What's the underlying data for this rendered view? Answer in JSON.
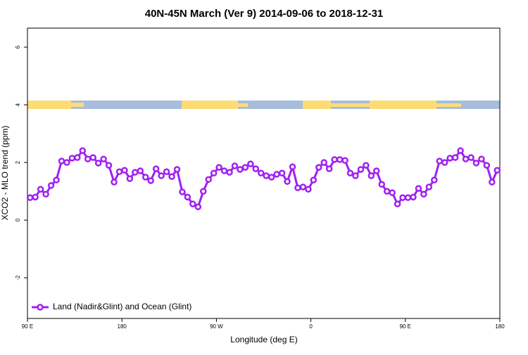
{
  "chart_data": {
    "type": "line",
    "title": "40N-45N March (Ver 9)   2014-09-06 to 2018-12-31",
    "xlabel": "Longitude (deg E)",
    "ylabel": "XCO2 - MLO trend (ppm)",
    "xlim": [
      90,
      540
    ],
    "ylim": [
      -3.41,
      6.66
    ],
    "xticks": [
      {
        "value": 90,
        "label": "90 E"
      },
      180,
      {
        "value": 270,
        "label": "90 W"
      },
      {
        "value": 360,
        "label": "0"
      },
      {
        "value": 450,
        "label": "90 E"
      },
      {
        "value": 540,
        "label": "180"
      }
    ],
    "yticks": [
      -2,
      0,
      2,
      4,
      6
    ],
    "legend": "bottom-left",
    "x": [
      92.5,
      97.5,
      102.5,
      107.5,
      112.5,
      117.5,
      122.5,
      127.5,
      132.5,
      137.5,
      142.5,
      147.5,
      152.5,
      157.5,
      162.5,
      167.5,
      172.5,
      177.5,
      182.5,
      187.5,
      192.5,
      197.5,
      202.5,
      207.5,
      212.5,
      217.5,
      222.5,
      227.5,
      232.5,
      237.5,
      242.5,
      247.5,
      252.5,
      257.5,
      262.5,
      267.5,
      272.5,
      277.5,
      282.5,
      287.5,
      292.5,
      297.5,
      302.5,
      307.5,
      312.5,
      317.5,
      322.5,
      327.5,
      332.5,
      337.5,
      342.5,
      347.5,
      352.5,
      357.5,
      362.5,
      367.5,
      372.5,
      377.5,
      382.5,
      387.5,
      392.5,
      397.5,
      402.5,
      407.5,
      412.5,
      417.5,
      422.5,
      427.5,
      432.5,
      437.5,
      442.5,
      447.5,
      452.5,
      457.5,
      462.5,
      467.5,
      472.5,
      477.5,
      482.5,
      487.5,
      492.5,
      497.5,
      502.5,
      507.5,
      512.5,
      517.5,
      522.5,
      527.5,
      532.5,
      537.5
    ],
    "series": [
      {
        "name": "Land (Nadir&Glint) and Ocean (Glint)",
        "color": "#a020f0",
        "values": [
          0.78,
          0.8,
          1.07,
          0.9,
          1.2,
          1.39,
          2.05,
          2.0,
          2.15,
          2.17,
          2.41,
          2.12,
          2.17,
          1.98,
          2.12,
          1.9,
          1.32,
          1.68,
          1.73,
          1.44,
          1.66,
          1.71,
          1.49,
          1.37,
          1.78,
          1.54,
          1.68,
          1.51,
          1.76,
          0.98,
          0.8,
          0.56,
          0.46,
          1.0,
          1.41,
          1.63,
          1.83,
          1.71,
          1.66,
          1.88,
          1.76,
          1.83,
          1.95,
          1.78,
          1.63,
          1.54,
          1.49,
          1.59,
          1.63,
          1.34,
          1.85,
          1.12,
          1.15,
          1.07,
          1.39,
          1.83,
          2.0,
          1.78,
          2.1,
          2.1,
          2.07,
          1.63,
          1.54,
          1.76,
          1.9,
          1.54,
          1.71,
          1.24,
          1.0,
          0.95,
          0.56,
          0.78,
          0.78,
          0.8,
          1.1,
          0.9,
          1.15,
          1.39,
          2.05,
          2.0,
          2.15,
          2.17,
          2.41,
          2.12,
          2.17,
          1.98,
          2.12,
          1.9,
          1.32,
          1.73
        ]
      }
    ]
  }
}
